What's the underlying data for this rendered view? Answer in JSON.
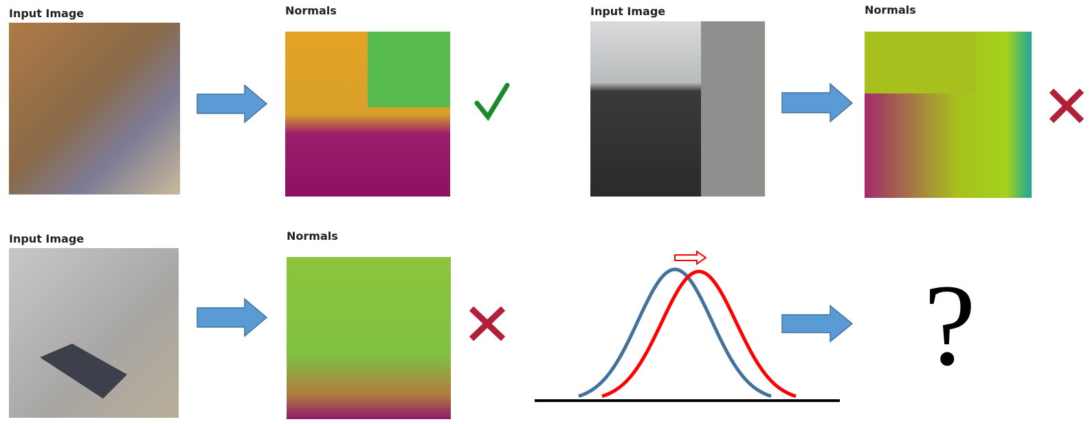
{
  "panels": [
    {
      "input_label": "Input Image",
      "output_label": "Normals"
    },
    {
      "input_label": "Input Image",
      "output_label": "Normals"
    },
    {
      "input_label": "Input Image",
      "output_label": "Normals"
    }
  ],
  "question_mark": "?"
}
